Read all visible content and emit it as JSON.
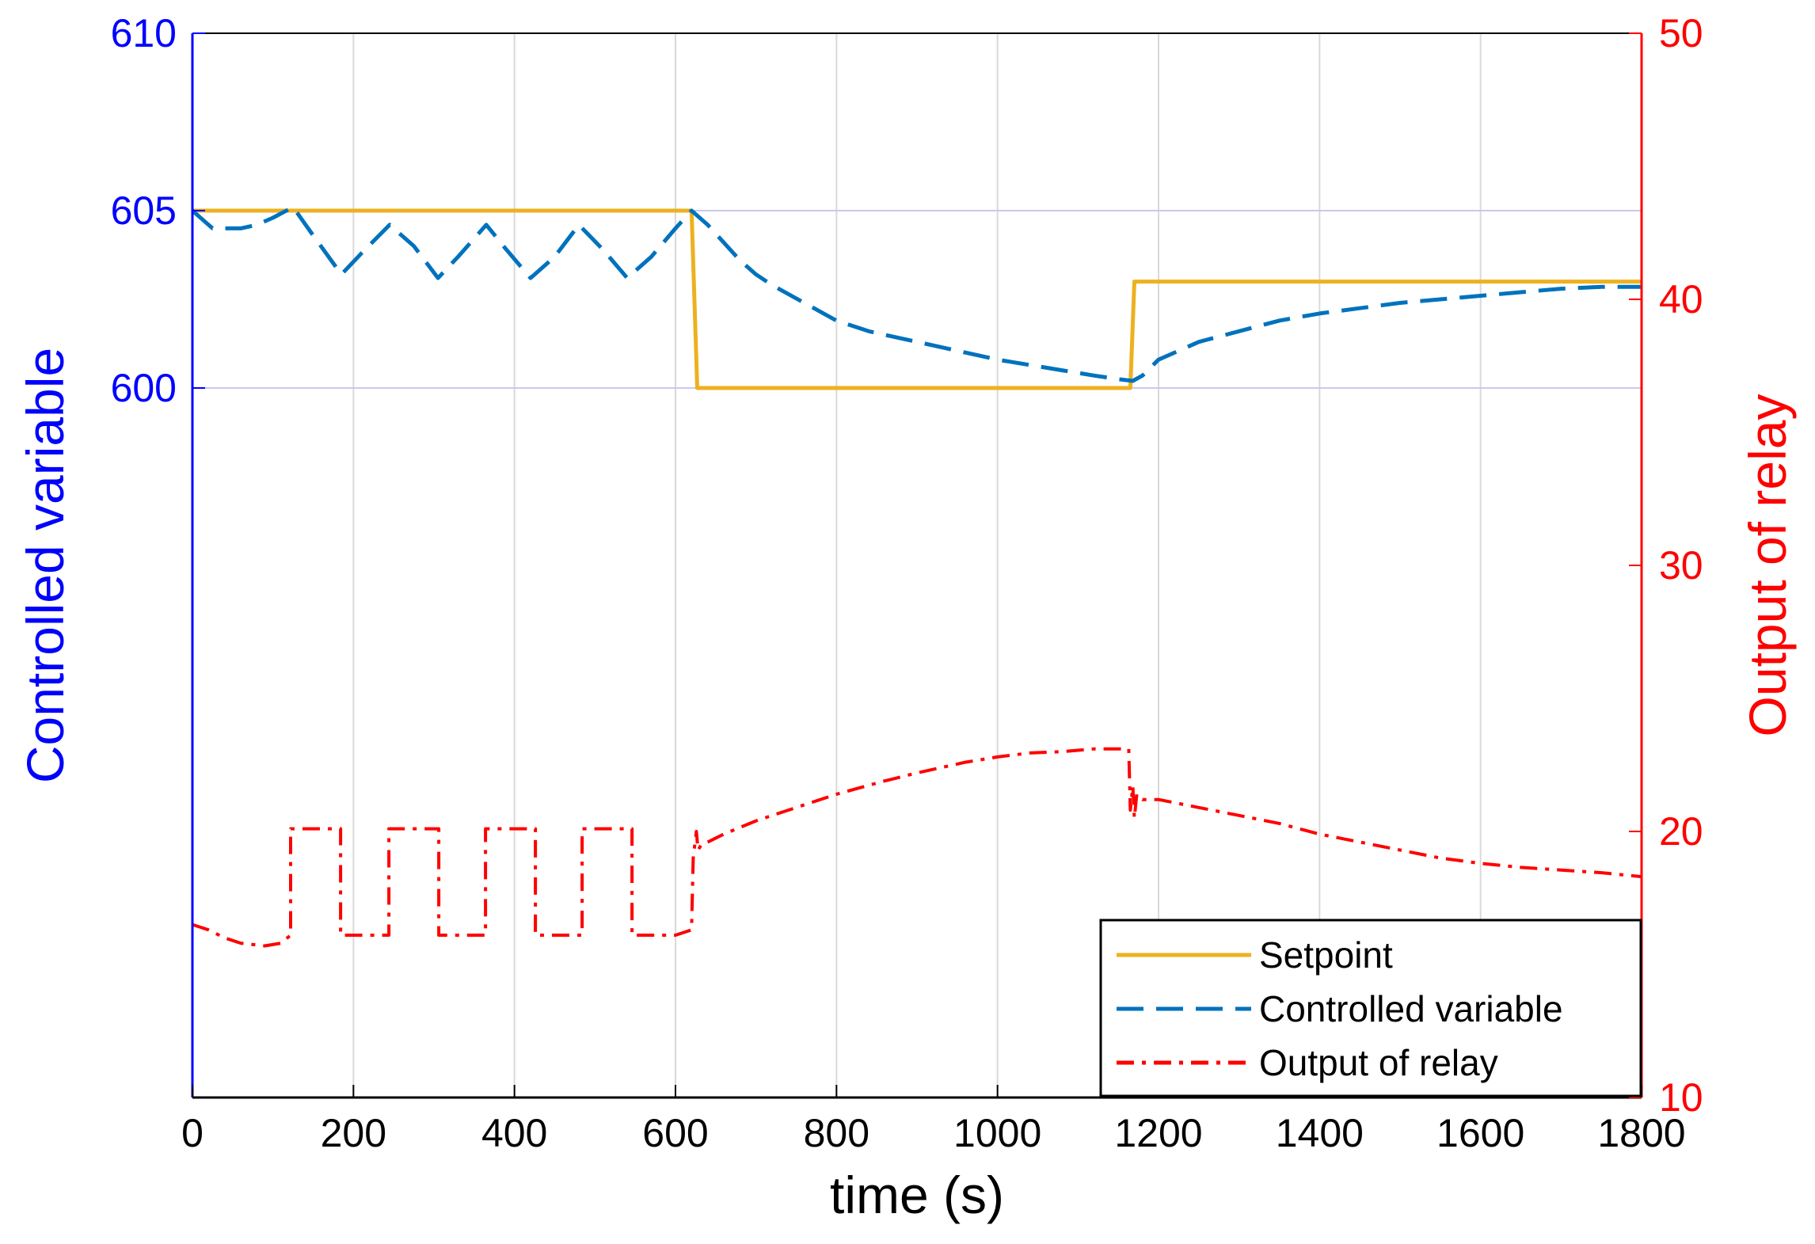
{
  "chart_data": {
    "type": "line",
    "xlabel": "time (s)",
    "ylabel_left": "Controlled variable",
    "ylabel_right": "Output of relay",
    "xlim": [
      0,
      1800
    ],
    "ylim_left": [
      580,
      610
    ],
    "ylim_right": [
      10,
      50
    ],
    "x_ticks": [
      0,
      200,
      400,
      600,
      800,
      1000,
      1200,
      1400,
      1600,
      1800
    ],
    "y_left_ticks": [
      600,
      605,
      610
    ],
    "y_right_ticks": [
      10,
      20,
      30,
      40,
      50
    ],
    "grid": true,
    "legend_position": "bottom-right",
    "colors": {
      "left_axis": "#0000ff",
      "right_axis": "#ff0000",
      "setpoint": "#edb120",
      "controlled": "#0072bd",
      "relay": "#ff0000",
      "grid": "#d9d9d9"
    },
    "series": [
      {
        "name": "Setpoint",
        "axis": "left",
        "style": "solid",
        "x": [
          0,
          620,
          627,
          1165,
          1170,
          1800
        ],
        "y": [
          605,
          605,
          600,
          600,
          603,
          603
        ]
      },
      {
        "name": "Controlled variable",
        "axis": "left",
        "style": "dashed",
        "x": [
          0,
          10,
          25,
          40,
          60,
          80,
          100,
          125,
          150,
          185,
          210,
          245,
          275,
          305,
          330,
          365,
          390,
          420,
          450,
          480,
          510,
          540,
          570,
          600,
          620,
          640,
          660,
          680,
          700,
          720,
          760,
          800,
          840,
          880,
          920,
          960,
          1000,
          1040,
          1080,
          1120,
          1150,
          1168,
          1180,
          1200,
          1250,
          1300,
          1350,
          1400,
          1450,
          1500,
          1550,
          1600,
          1650,
          1700,
          1750,
          1800
        ],
        "y": [
          605,
          604.8,
          604.5,
          604.5,
          604.5,
          604.6,
          604.8,
          605.1,
          604.3,
          603.2,
          603.8,
          604.6,
          604.0,
          603.1,
          603.7,
          604.6,
          603.9,
          603.1,
          603.7,
          604.6,
          603.9,
          603.1,
          603.7,
          604.5,
          605.0,
          604.6,
          604.1,
          603.6,
          603.2,
          602.9,
          602.4,
          601.9,
          601.6,
          601.4,
          601.2,
          601.0,
          600.8,
          600.65,
          600.5,
          600.35,
          600.25,
          600.2,
          600.35,
          600.8,
          601.3,
          601.6,
          601.9,
          602.1,
          602.25,
          602.4,
          602.5,
          602.6,
          602.7,
          602.8,
          602.85,
          602.85
        ]
      },
      {
        "name": "Output of relay",
        "axis": "right",
        "style": "dashdot",
        "x": [
          0,
          20,
          40,
          60,
          90,
          110,
          122,
          122,
          184,
          184,
          244,
          244,
          306,
          306,
          364,
          364,
          426,
          426,
          484,
          484,
          546,
          546,
          600,
          620,
          622,
          626,
          628,
          632,
          640,
          660,
          700,
          760,
          800,
          860,
          900,
          960,
          1000,
          1040,
          1080,
          1120,
          1160,
          1163,
          1165,
          1168,
          1170,
          1173,
          1180,
          1200,
          1250,
          1300,
          1350,
          1400,
          1450,
          1500,
          1550,
          1600,
          1650,
          1700,
          1750,
          1800
        ],
        "y": [
          16.5,
          16.3,
          16.0,
          15.8,
          15.7,
          15.8,
          16.1,
          20.1,
          20.1,
          16.1,
          16.1,
          20.1,
          20.1,
          16.1,
          16.1,
          20.1,
          20.1,
          16.1,
          16.1,
          20.1,
          20.1,
          16.1,
          16.1,
          16.3,
          19.0,
          20.0,
          19.3,
          19.5,
          19.6,
          19.9,
          20.4,
          21.0,
          21.4,
          21.9,
          22.2,
          22.6,
          22.8,
          22.95,
          23.0,
          23.1,
          23.1,
          23.1,
          20.8,
          21.7,
          20.5,
          21.4,
          21.2,
          21.2,
          20.9,
          20.6,
          20.3,
          19.9,
          19.6,
          19.3,
          19.0,
          18.8,
          18.65,
          18.55,
          18.45,
          18.3
        ]
      }
    ]
  }
}
